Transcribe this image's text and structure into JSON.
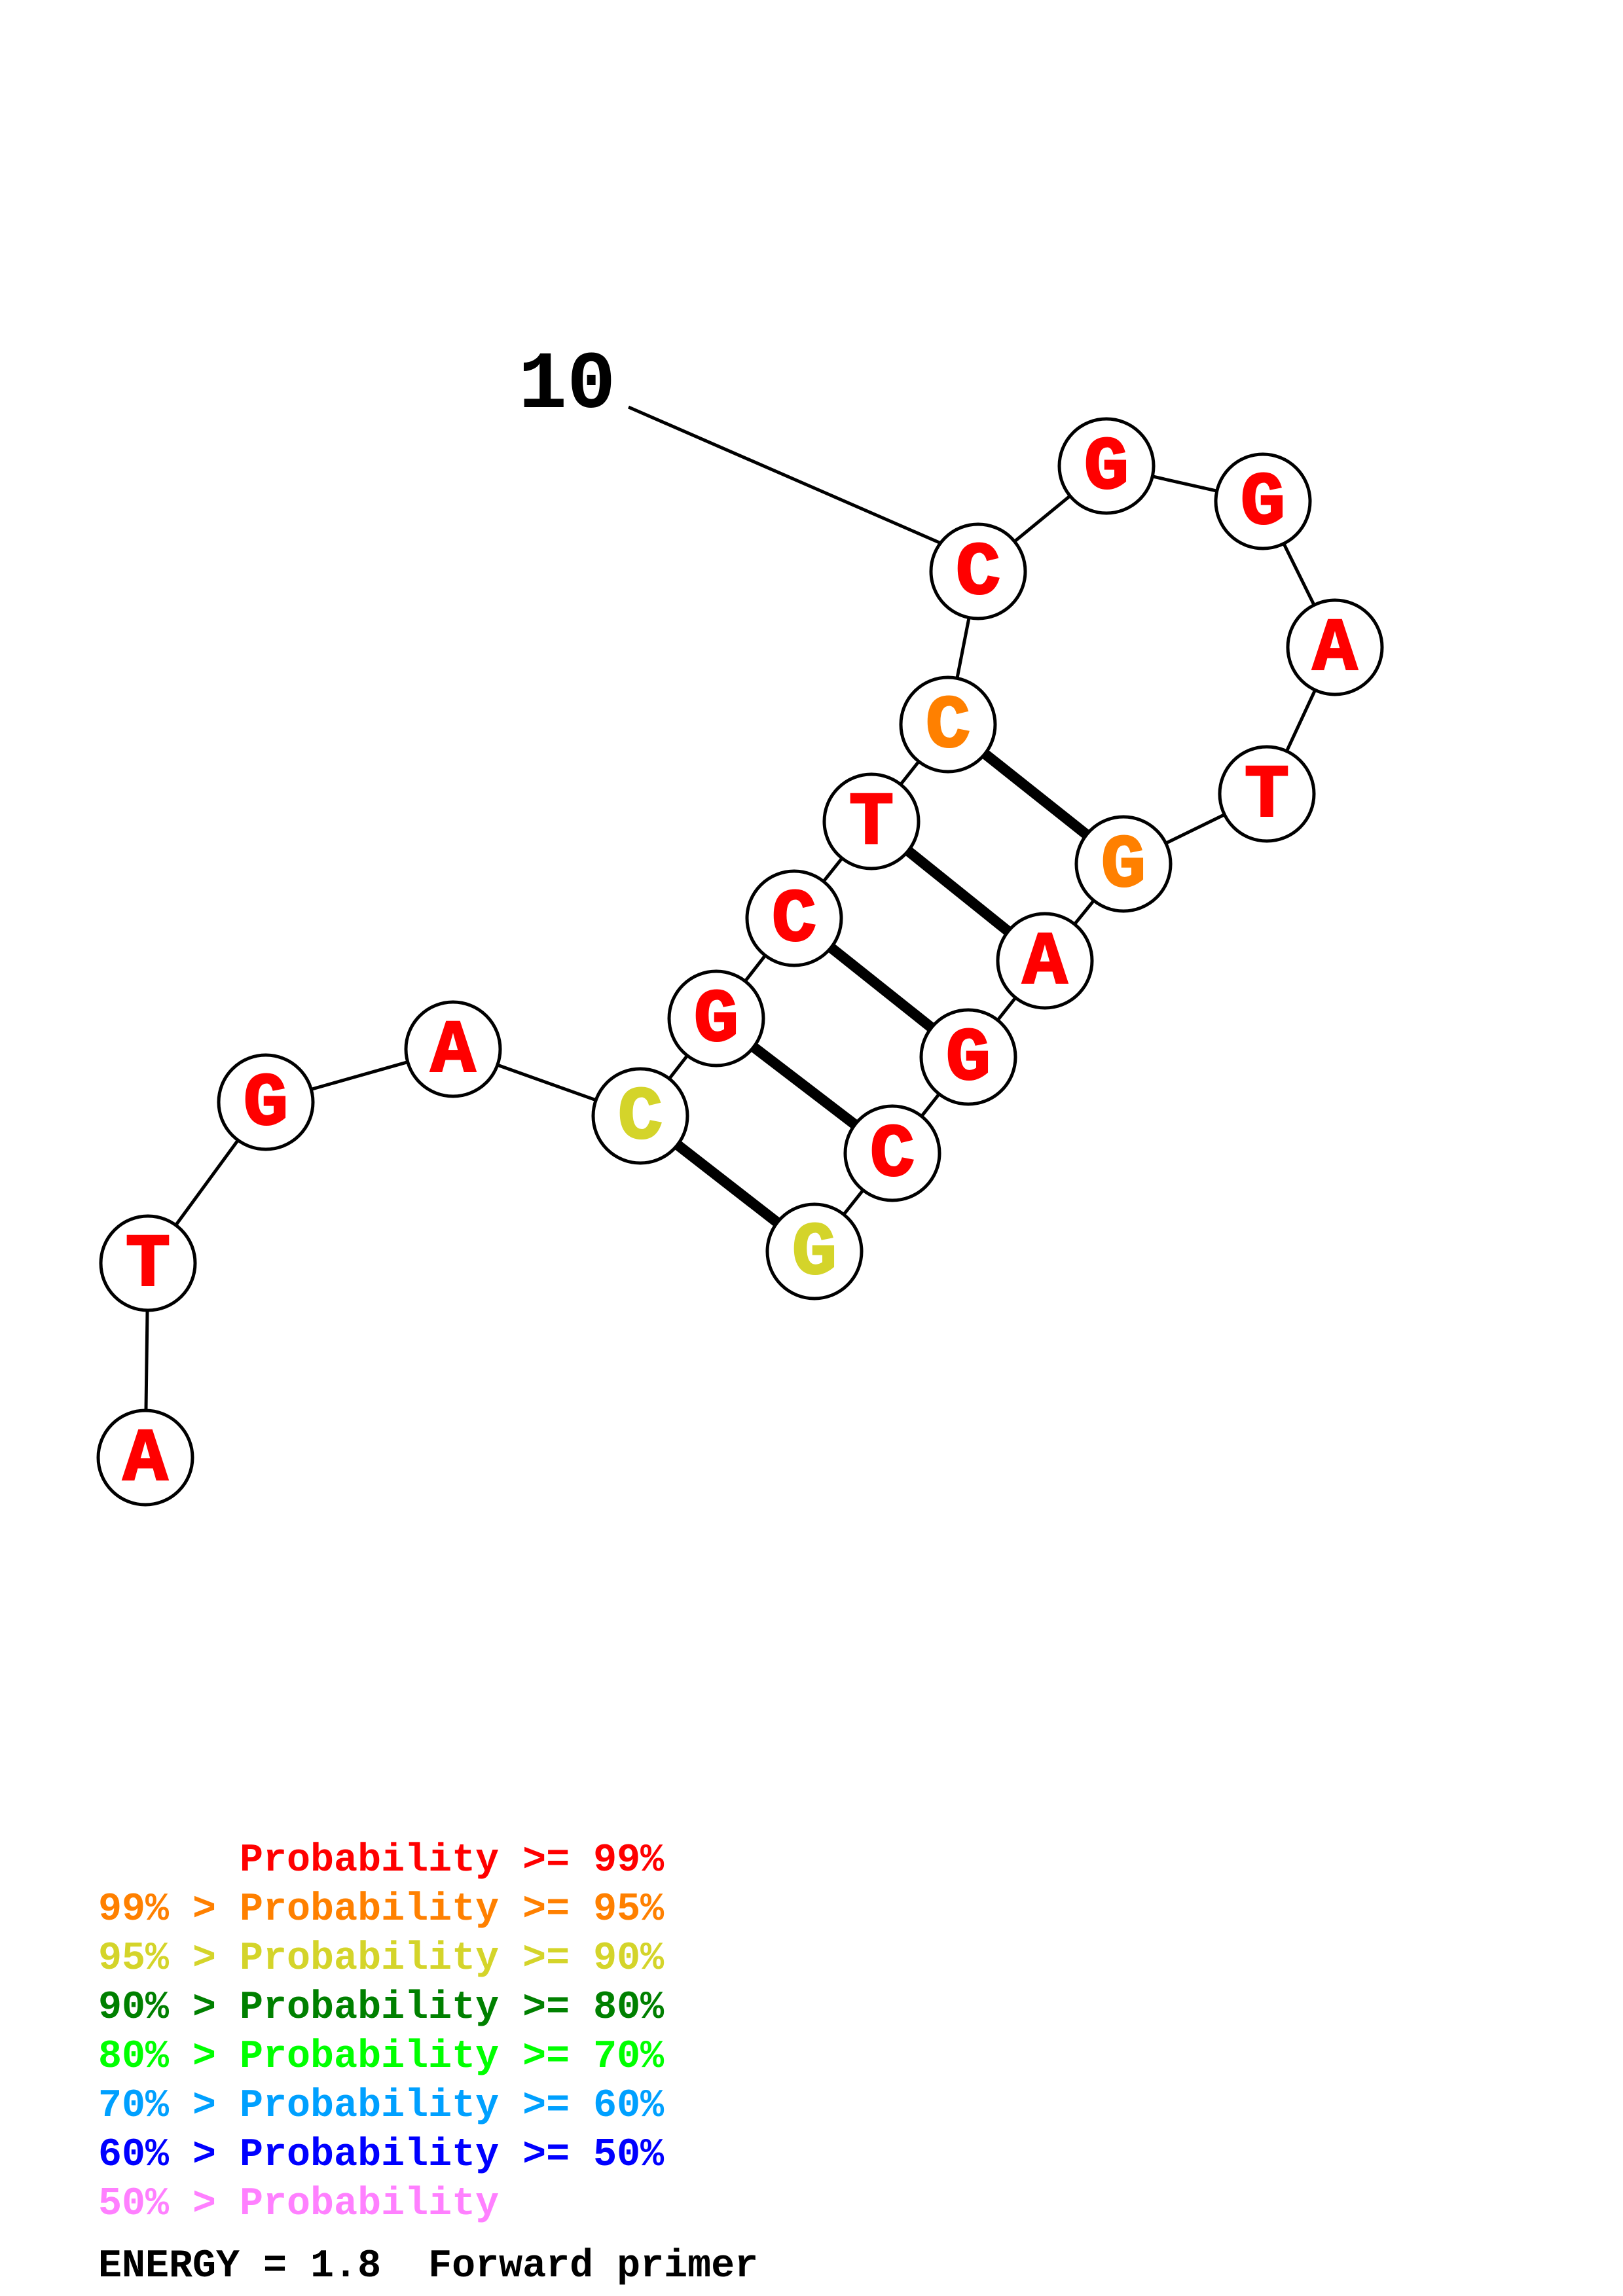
{
  "diagram": {
    "sequence_bases": [
      {
        "letter": "A",
        "color": "#ff0000"
      },
      {
        "letter": "T",
        "color": "#ff0000"
      },
      {
        "letter": "G",
        "color": "#ff0000"
      },
      {
        "letter": "A",
        "color": "#ff0000"
      },
      {
        "letter": "C",
        "color": "#d4d42a"
      },
      {
        "letter": "G",
        "color": "#ff0000"
      },
      {
        "letter": "C",
        "color": "#ff0000"
      },
      {
        "letter": "T",
        "color": "#ff0000"
      },
      {
        "letter": "C",
        "color": "#ff8000"
      },
      {
        "letter": "C",
        "color": "#ff0000"
      },
      {
        "letter": "G",
        "color": "#ff0000"
      },
      {
        "letter": "G",
        "color": "#ff0000"
      },
      {
        "letter": "A",
        "color": "#ff0000"
      },
      {
        "letter": "T",
        "color": "#ff0000"
      },
      {
        "letter": "G",
        "color": "#ff8000"
      },
      {
        "letter": "A",
        "color": "#ff0000"
      },
      {
        "letter": "G",
        "color": "#ff0000"
      },
      {
        "letter": "C",
        "color": "#ff0000"
      },
      {
        "letter": "G",
        "color": "#d4d42a"
      }
    ],
    "base_pairs": [
      [
        5,
        19
      ],
      [
        6,
        18
      ],
      [
        7,
        17
      ],
      [
        8,
        16
      ],
      [
        9,
        15
      ]
    ],
    "position_label": {
      "text": "10",
      "base_index": 10
    }
  },
  "legend": {
    "lines": [
      {
        "text": "      Probability >= 99%",
        "color": "#ff0000"
      },
      {
        "text": "99% > Probability >= 95%",
        "color": "#ff8000"
      },
      {
        "text": "95% > Probability >= 90%",
        "color": "#d4d42a"
      },
      {
        "text": "90% > Probability >= 80%",
        "color": "#008000"
      },
      {
        "text": "80% > Probability >= 70%",
        "color": "#00ff00"
      },
      {
        "text": "70% > Probability >= 60%",
        "color": "#00a0ff"
      },
      {
        "text": "60% > Probability >= 50%",
        "color": "#0000ff"
      },
      {
        "text": "50% > Probability",
        "color": "#ff80ff"
      }
    ],
    "energy_line": "ENERGY = 1.8  Forward primer",
    "energy_color": "#000000"
  }
}
